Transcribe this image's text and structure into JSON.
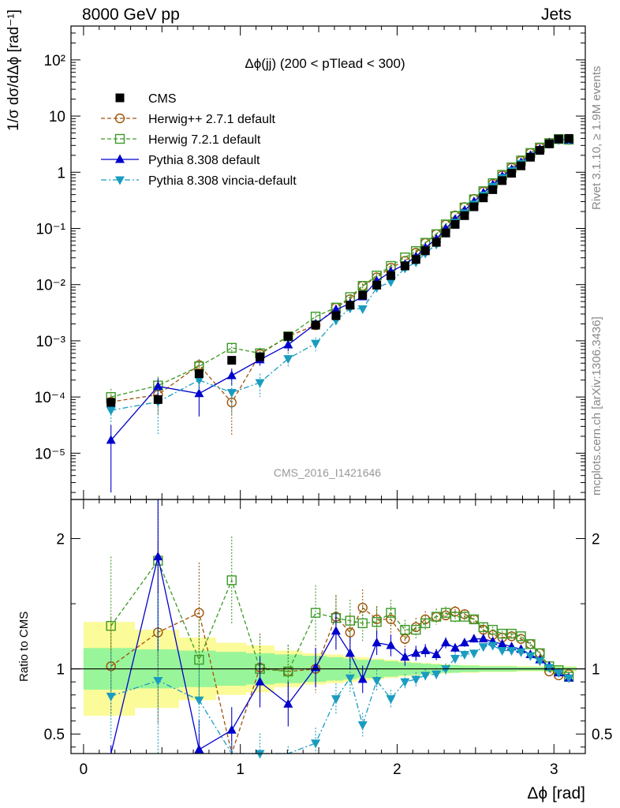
{
  "header": {
    "energy": "8000 GeV pp",
    "process": "Jets"
  },
  "side_labels": {
    "rivet": "Rivet 3.1.10, ≥ 1.9M events",
    "mcplots": "mcplots.cern.ch [arXiv:1306.3436]"
  },
  "chart_data": {
    "type": "line",
    "title": "Δϕ(jj) (200 < pTlead <  300)",
    "watermark": "CMS_2016_I1421646",
    "xlabel": "Δϕ [rad]",
    "ylabel": "1/σ dσ/dΔϕ [rad⁻¹]",
    "ratio_ylabel": "Ratio to CMS",
    "xlim": [
      -0.08,
      3.2
    ],
    "ylim": [
      1.5e-06,
      400
    ],
    "ratio_ylim": [
      0.35,
      2.3
    ],
    "log_y": true,
    "grid": false,
    "legend_position": "top-left",
    "x_ticks": [
      "0",
      "1",
      "2",
      "3"
    ],
    "y_ticks_main": [
      "10⁻⁵",
      "10⁻⁴",
      "10⁻³",
      "10⁻²",
      "10⁻¹",
      "1",
      "10",
      "10²"
    ],
    "y_ticks_ratio": [
      "0.5",
      "1",
      "2"
    ],
    "colors": {
      "cms": "#000000",
      "herwigpp": "#a0520a",
      "herwig7": "#3b9a26",
      "pythia": "#0000cc",
      "vincia": "#1a9cc0",
      "band_inner": "#99f599",
      "band_outer": "#fbfb99"
    },
    "x": [
      0.175,
      0.475,
      0.737,
      0.945,
      1.125,
      1.305,
      1.48,
      1.61,
      1.7,
      1.78,
      1.87,
      1.96,
      2.05,
      2.12,
      2.18,
      2.25,
      2.31,
      2.37,
      2.43,
      2.49,
      2.55,
      2.61,
      2.67,
      2.73,
      2.79,
      2.85,
      2.91,
      2.97,
      3.03,
      3.095
    ],
    "series": [
      {
        "name": "CMS",
        "marker": "square",
        "values": [
          8e-05,
          9e-05,
          0.00026,
          0.00045,
          0.00052,
          0.0012,
          0.0019,
          0.0028,
          0.0043,
          0.0065,
          0.0098,
          0.0145,
          0.0215,
          0.028,
          0.04,
          0.0565,
          0.083,
          0.118,
          0.169,
          0.243,
          0.35,
          0.49,
          0.71,
          0.96,
          1.3,
          1.85,
          2.45,
          3.2,
          3.9,
          4.0
        ],
        "ratio_band_inner": [
          0.16,
          0.15,
          0.14,
          0.13,
          0.12,
          0.11,
          0.1,
          0.09,
          0.08,
          0.07,
          0.07,
          0.06,
          0.05,
          0.045,
          0.04,
          0.035,
          0.03,
          0.03,
          0.025,
          0.025,
          0.02,
          0.02,
          0.02,
          0.02,
          0.015,
          0.015,
          0.015,
          0.015,
          0.015,
          0.015
        ],
        "ratio_band_outer": [
          0.36,
          0.3,
          0.24,
          0.2,
          0.18,
          0.14,
          0.12,
          0.11,
          0.1,
          0.09,
          0.08,
          0.07,
          0.06,
          0.05,
          0.045,
          0.04,
          0.035,
          0.03,
          0.03,
          0.03,
          0.025,
          0.025,
          0.025,
          0.025,
          0.02,
          0.02,
          0.02,
          0.02,
          0.02,
          0.02
        ]
      },
      {
        "name": "Herwig++ 2.7.1 default",
        "marker": "circle-open",
        "line": "dashed",
        "values": [
          8.2e-05,
          0.00011,
          0.00037,
          8e-05,
          0.00058,
          0.0012,
          0.0019,
          0.0039,
          0.0055,
          0.0095,
          0.0135,
          0.02,
          0.0265,
          0.037,
          0.055,
          0.079,
          0.117,
          0.17,
          0.24,
          0.335,
          0.455,
          0.62,
          0.88,
          1.2,
          1.6,
          2.2,
          2.75,
          3.35,
          3.9,
          3.85
        ],
        "errors": [
          3e-05,
          6e-05,
          0.0001,
          6e-05,
          0.00015,
          0.00025,
          0.00035,
          0.00045,
          0.0006,
          0.0009,
          0.001,
          0.0015,
          0.0015,
          0.002,
          0.0025,
          0.0035,
          0.004,
          0.005,
          0.006,
          0.008,
          0.01,
          0.012,
          0.015,
          0.02,
          0.025,
          0.03,
          0.035,
          0.04,
          0.05,
          0.05
        ],
        "ratio": [
          1.02,
          1.28,
          1.43,
          0.17,
          1.01,
          0.98,
          1.0,
          1.4,
          1.28,
          1.47,
          1.38,
          1.38,
          1.23,
          1.32,
          1.38,
          1.4,
          1.41,
          1.44,
          1.42,
          1.38,
          1.3,
          1.26,
          1.24,
          1.25,
          1.23,
          1.19,
          1.12,
          0.98,
          0.95,
          0.96
        ]
      },
      {
        "name": "Herwig 7.2.1 default",
        "marker": "square-open",
        "line": "dashed",
        "values": [
          0.0001,
          0.00016,
          0.00035,
          0.00075,
          0.0006,
          0.0012,
          0.0027,
          0.0039,
          0.006,
          0.0095,
          0.0145,
          0.0215,
          0.0305,
          0.0395,
          0.0555,
          0.079,
          0.118,
          0.166,
          0.236,
          0.33,
          0.46,
          0.64,
          0.9,
          1.22,
          1.62,
          2.2,
          2.75,
          3.3,
          3.9,
          3.8
        ],
        "errors": [
          4e-05,
          7e-05,
          0.0001,
          0.00015,
          0.00015,
          0.00025,
          0.0004,
          0.0005,
          0.0007,
          0.001,
          0.0012,
          0.0015,
          0.0018,
          0.002,
          0.0025,
          0.0035,
          0.004,
          0.005,
          0.006,
          0.008,
          0.01,
          0.012,
          0.015,
          0.02,
          0.025,
          0.03,
          0.035,
          0.04,
          0.05,
          0.05
        ],
        "ratio": [
          1.33,
          1.83,
          1.07,
          1.68,
          1.0,
          0.98,
          1.43,
          1.39,
          1.37,
          1.35,
          1.36,
          1.43,
          1.3,
          1.3,
          1.35,
          1.4,
          1.43,
          1.4,
          1.4,
          1.38,
          1.32,
          1.3,
          1.27,
          1.27,
          1.25,
          1.19,
          1.12,
          1.02,
          0.99,
          0.94
        ]
      },
      {
        "name": "Pythia 8.308 default",
        "marker": "triangle-up",
        "line": "solid",
        "values": [
          1.7e-05,
          0.000155,
          0.000115,
          0.00024,
          0.00046,
          0.00085,
          0.002,
          0.0036,
          0.0046,
          0.0061,
          0.0116,
          0.017,
          0.023,
          0.0315,
          0.0455,
          0.065,
          0.099,
          0.145,
          0.21,
          0.3,
          0.43,
          0.6,
          0.85,
          1.12,
          1.5,
          2.0,
          2.6,
          3.3,
          3.8,
          3.75
        ],
        "errors": [
          1.5e-05,
          6e-05,
          7e-05,
          8e-05,
          0.0001,
          0.0002,
          0.0003,
          0.0004,
          0.0005,
          0.0007,
          0.0009,
          0.0012,
          0.0014,
          0.0016,
          0.002,
          0.0025,
          0.0035,
          0.0045,
          0.0055,
          0.007,
          0.009,
          0.011,
          0.014,
          0.018,
          0.022,
          0.028,
          0.033,
          0.04,
          0.05,
          0.05
        ],
        "ratio": [
          0.22,
          1.86,
          0.38,
          0.53,
          0.9,
          0.73,
          1.01,
          1.29,
          1.12,
          0.92,
          1.2,
          1.18,
          1.09,
          1.12,
          1.14,
          1.11,
          1.2,
          1.16,
          1.2,
          1.23,
          1.23,
          1.21,
          1.19,
          1.17,
          1.15,
          1.11,
          1.07,
          1.02,
          0.97,
          0.93
        ]
      },
      {
        "name": "Pythia 8.308 vincia-default",
        "marker": "triangle-down",
        "line": "dash-dot",
        "values": [
          5.8e-05,
          8.2e-05,
          0.0002,
          0.00012,
          0.00018,
          0.00048,
          0.0009,
          0.0023,
          0.0038,
          0.0037,
          0.0088,
          0.0112,
          0.0195,
          0.025,
          0.036,
          0.052,
          0.083,
          0.128,
          0.188,
          0.27,
          0.39,
          0.56,
          0.8,
          1.06,
          1.43,
          1.92,
          2.48,
          3.2,
          3.75,
          3.75
        ],
        "errors": [
          2.5e-05,
          6e-05,
          7e-05,
          7e-05,
          8e-05,
          0.00015,
          0.00025,
          0.00035,
          0.0005,
          0.0006,
          0.0008,
          0.001,
          0.0013,
          0.0015,
          0.0018,
          0.0025,
          0.0035,
          0.0045,
          0.0055,
          0.007,
          0.009,
          0.011,
          0.014,
          0.018,
          0.022,
          0.028,
          0.033,
          0.04,
          0.05,
          0.05
        ],
        "ratio": [
          0.79,
          0.91,
          0.76,
          0.28,
          0.35,
          0.31,
          0.43,
          0.77,
          0.93,
          0.57,
          0.91,
          0.77,
          0.9,
          0.92,
          0.95,
          0.96,
          1.0,
          1.08,
          1.11,
          1.12,
          1.17,
          1.18,
          1.14,
          1.14,
          1.13,
          1.1,
          1.06,
          1.01,
          0.97,
          0.93
        ]
      }
    ]
  }
}
